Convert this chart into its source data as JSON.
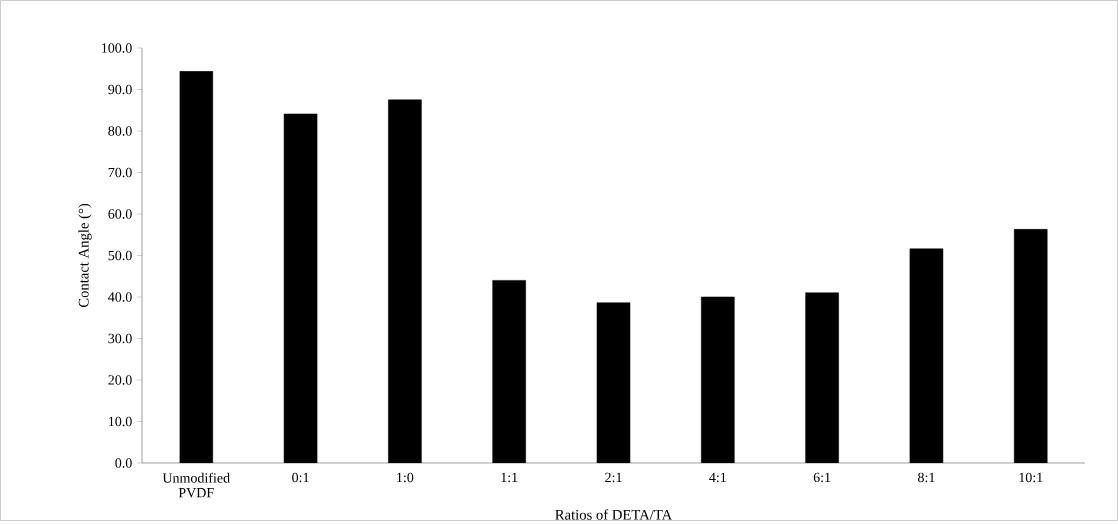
{
  "chart_data": {
    "type": "bar",
    "xlabel": "Ratios of DETA/TA",
    "ylabel": "Contact Angle (°)",
    "categories": [
      "Unmodified PVDF",
      "0:1",
      "1:0",
      "1:1",
      "2:1",
      "4:1",
      "6:1",
      "8:1",
      "10:1"
    ],
    "values": [
      94.4,
      84.1,
      87.5,
      44.0,
      38.6,
      40.0,
      41.0,
      51.6,
      56.3
    ],
    "color": "#000000",
    "ylim": [
      0,
      100
    ],
    "yticks": [
      {
        "value": 0,
        "label": "0.0"
      },
      {
        "value": 10,
        "label": "10.0"
      },
      {
        "value": 20,
        "label": "20.0"
      },
      {
        "value": 30,
        "label": "30.0"
      },
      {
        "value": 40,
        "label": "40.0"
      },
      {
        "value": 50,
        "label": "50.0"
      },
      {
        "value": 60,
        "label": "60.0"
      },
      {
        "value": 70,
        "label": "70.0"
      },
      {
        "value": 80,
        "label": "80.0"
      },
      {
        "value": 90,
        "label": "90.0"
      },
      {
        "value": 100,
        "label": "100.0"
      }
    ],
    "grid": false
  }
}
